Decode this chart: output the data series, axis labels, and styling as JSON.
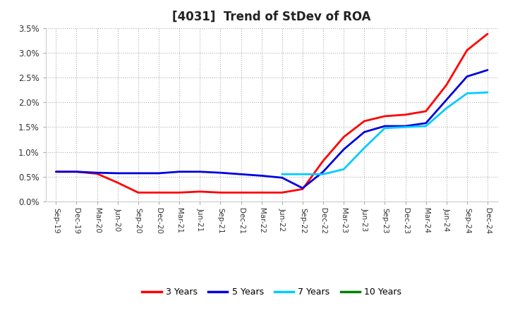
{
  "title": "[4031]  Trend of StDev of ROA",
  "background_color": "#ffffff",
  "grid_color": "#b0b0b0",
  "ylim": [
    0.0,
    0.035
  ],
  "yticks": [
    0.0,
    0.005,
    0.01,
    0.015,
    0.02,
    0.025,
    0.03,
    0.035
  ],
  "ytick_labels": [
    "0.0%",
    "0.5%",
    "1.0%",
    "1.5%",
    "2.0%",
    "2.5%",
    "3.0%",
    "3.5%"
  ],
  "x_labels": [
    "Sep-19",
    "Dec-19",
    "Mar-20",
    "Jun-20",
    "Sep-20",
    "Dec-20",
    "Mar-21",
    "Jun-21",
    "Sep-21",
    "Dec-21",
    "Mar-22",
    "Jun-22",
    "Sep-22",
    "Dec-22",
    "Mar-23",
    "Jun-23",
    "Sep-23",
    "Dec-23",
    "Mar-24",
    "Jun-24",
    "Sep-24",
    "Dec-24"
  ],
  "series": {
    "3 Years": {
      "color": "#ff0000",
      "data": [
        0.006,
        0.006,
        0.0056,
        0.0038,
        0.0018,
        0.0018,
        0.0018,
        0.002,
        0.0018,
        0.0018,
        0.0018,
        0.0018,
        0.0025,
        0.0082,
        0.013,
        0.0162,
        0.0172,
        0.0175,
        0.0182,
        0.0235,
        0.0305,
        0.0338
      ]
    },
    "5 Years": {
      "color": "#0000dd",
      "data": [
        0.006,
        0.006,
        0.0058,
        0.0057,
        0.0057,
        0.0057,
        0.006,
        0.006,
        0.0058,
        0.0055,
        0.0052,
        0.0048,
        0.0027,
        0.006,
        0.0105,
        0.014,
        0.0152,
        0.0152,
        0.0158,
        0.0205,
        0.0252,
        0.0265
      ]
    },
    "7 Years": {
      "color": "#00ccff",
      "data": [
        null,
        null,
        null,
        null,
        null,
        null,
        null,
        null,
        null,
        null,
        null,
        0.0055,
        0.0055,
        0.0055,
        0.0065,
        0.0108,
        0.0148,
        0.015,
        0.0152,
        0.0188,
        0.0218,
        0.022
      ]
    },
    "10 Years": {
      "color": "#008000",
      "data": [
        null,
        null,
        null,
        null,
        null,
        null,
        null,
        null,
        null,
        null,
        null,
        null,
        null,
        null,
        null,
        null,
        null,
        null,
        null,
        null,
        null,
        null
      ]
    }
  },
  "legend_labels": [
    "3 Years",
    "5 Years",
    "7 Years",
    "10 Years"
  ],
  "legend_colors": [
    "#ff0000",
    "#0000dd",
    "#00ccff",
    "#008000"
  ]
}
